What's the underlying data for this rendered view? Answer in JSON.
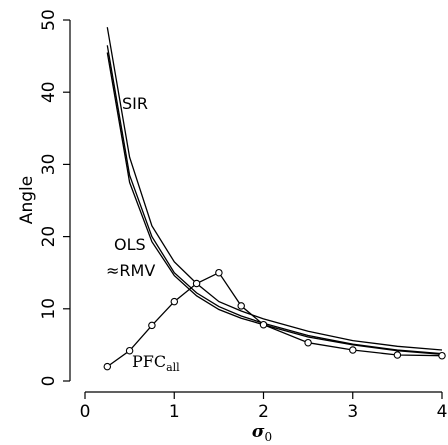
{
  "chart_data": {
    "type": "line",
    "title": "",
    "xlabel": "σ",
    "xlabel_subscript": "0",
    "ylabel": "Angle",
    "xlim": [
      0,
      4
    ],
    "ylim": [
      0,
      50
    ],
    "x_ticks": [
      "0",
      "1",
      "2",
      "3",
      "4"
    ],
    "y_ticks": [
      "0",
      "10",
      "20",
      "30",
      "40",
      "50"
    ],
    "grid": false,
    "legend": "none",
    "series": [
      {
        "name": "SIR",
        "markers": false,
        "x": [
          0.25,
          0.5,
          0.75,
          1.0,
          1.25,
          1.5,
          1.75,
          2.0,
          2.5,
          3.0,
          3.5,
          4.0
        ],
        "y": [
          49.0,
          31.0,
          21.5,
          16.5,
          13.5,
          11.0,
          9.7,
          8.6,
          6.9,
          5.6,
          4.8,
          4.3
        ]
      },
      {
        "name": "OLS",
        "markers": false,
        "x": [
          0.25,
          0.5,
          0.75,
          1.0,
          1.25,
          1.5,
          1.75,
          2.0,
          2.5,
          3.0,
          3.5,
          4.0
        ],
        "y": [
          46.5,
          28.5,
          20.0,
          15.0,
          12.2,
          10.3,
          9.0,
          8.0,
          6.3,
          5.1,
          4.3,
          3.8
        ]
      },
      {
        "name": "RMV",
        "markers": false,
        "x": [
          0.25,
          0.5,
          0.75,
          1.0,
          1.25,
          1.5,
          1.75,
          2.0,
          2.5,
          3.0,
          3.5,
          4.0
        ],
        "y": [
          45.5,
          27.5,
          19.3,
          14.6,
          11.8,
          9.9,
          8.7,
          7.8,
          6.1,
          5.0,
          4.2,
          3.7
        ]
      },
      {
        "name": "PFCall",
        "markers": true,
        "x": [
          0.25,
          0.5,
          0.75,
          1.0,
          1.25,
          1.5,
          1.75,
          2.0,
          2.5,
          3.0,
          3.5,
          4.0
        ],
        "y": [
          2.0,
          4.2,
          7.7,
          11.0,
          13.5,
          15.0,
          10.4,
          7.8,
          5.3,
          4.3,
          3.6,
          3.5
        ]
      }
    ],
    "annotations": {
      "sir": "SIR",
      "ols": "OLS",
      "rmv": "≈RMV",
      "pfc_main": "PFC",
      "pfc_sub": "all"
    }
  }
}
